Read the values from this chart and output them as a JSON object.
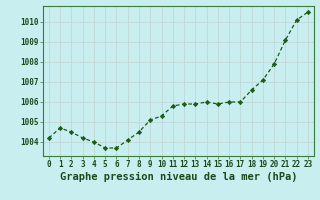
{
  "x": [
    0,
    1,
    2,
    3,
    4,
    5,
    6,
    7,
    8,
    9,
    10,
    11,
    12,
    13,
    14,
    15,
    16,
    17,
    18,
    19,
    20,
    21,
    22,
    23
  ],
  "y": [
    1004.2,
    1004.7,
    1004.5,
    1004.2,
    1004.0,
    1003.7,
    1003.7,
    1004.1,
    1004.5,
    1005.1,
    1005.3,
    1005.8,
    1005.9,
    1005.9,
    1006.0,
    1005.9,
    1006.0,
    1006.0,
    1006.6,
    1007.1,
    1007.9,
    1009.1,
    1010.1,
    1010.5
  ],
  "ylim_lo": 1003.3,
  "ylim_hi": 1010.8,
  "yticks": [
    1004,
    1005,
    1006,
    1007,
    1008,
    1009,
    1010
  ],
  "xticks": [
    0,
    1,
    2,
    3,
    4,
    5,
    6,
    7,
    8,
    9,
    10,
    11,
    12,
    13,
    14,
    15,
    16,
    17,
    18,
    19,
    20,
    21,
    22,
    23
  ],
  "xlabel": "Graphe pression niveau de la mer (hPa)",
  "line_color": "#1a5c1a",
  "marker_color": "#1a5c1a",
  "bg_color": "#c8eef0",
  "grid_color": "#c0d8d8",
  "border_color": "#3a7a3a",
  "tick_label_color": "#1a4a1a",
  "xlabel_color": "#1a4a1a",
  "tick_fontsize": 5.5,
  "xlabel_fontsize": 7.5
}
